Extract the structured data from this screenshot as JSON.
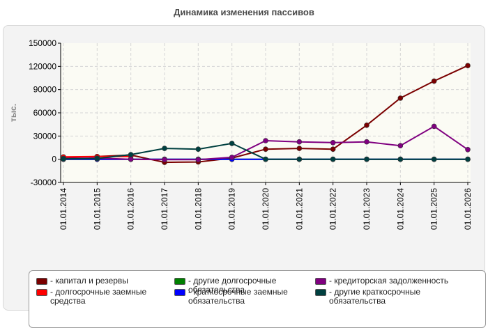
{
  "chart_data": {
    "type": "line",
    "title": "Динамика изменения пассивов",
    "ylabel": "тыс.",
    "xlabel": "",
    "ylim": [
      -30000,
      150000
    ],
    "yticks": [
      150000,
      120000,
      90000,
      60000,
      30000,
      0,
      -30000
    ],
    "categories": [
      "01.01.2014",
      "01.01.2015",
      "01.01.2016",
      "01.01.2017",
      "01.01.2018",
      "01.01.2019",
      "01.01.2020",
      "01.01.2021",
      "01.01.2022",
      "01.01.2023",
      "01.01.2024",
      "01.01.2025",
      "01.01.2026"
    ],
    "grid": true,
    "legend_position": "bottom",
    "series": [
      {
        "name": "капитал и резервы",
        "color": "#7b0000",
        "values": [
          2500,
          3500,
          5500,
          -4000,
          -3500,
          1500,
          13000,
          14000,
          13000,
          44000,
          79000,
          101000,
          121000
        ]
      },
      {
        "name": "долгосрочные заемные средства",
        "color": "#ff0000",
        "values": [
          3000,
          3500,
          3500,
          null,
          null,
          null,
          null,
          null,
          null,
          null,
          null,
          null,
          null
        ]
      },
      {
        "name": "другие долгосрочные обязательства",
        "color": "#008000",
        "values": [
          0,
          0,
          0,
          0,
          0,
          0,
          0,
          0,
          0,
          0,
          0,
          0,
          0
        ]
      },
      {
        "name": "краткосрочные заемные обязательства",
        "color": "#0000ff",
        "values": [
          0,
          0,
          0,
          0,
          0,
          0,
          0,
          0,
          0,
          0,
          0,
          0,
          0
        ]
      },
      {
        "name": "кредиторская задолженность",
        "color": "#800080",
        "values": [
          1000,
          1500,
          0,
          -500,
          -500,
          2500,
          24000,
          22500,
          21500,
          22500,
          17500,
          42500,
          12500
        ]
      },
      {
        "name": "другие краткосрочные обязательства",
        "color": "#004040",
        "values": [
          500,
          1000,
          6000,
          14000,
          13000,
          20500,
          0,
          0,
          0,
          0,
          0,
          0,
          0
        ]
      }
    ]
  }
}
